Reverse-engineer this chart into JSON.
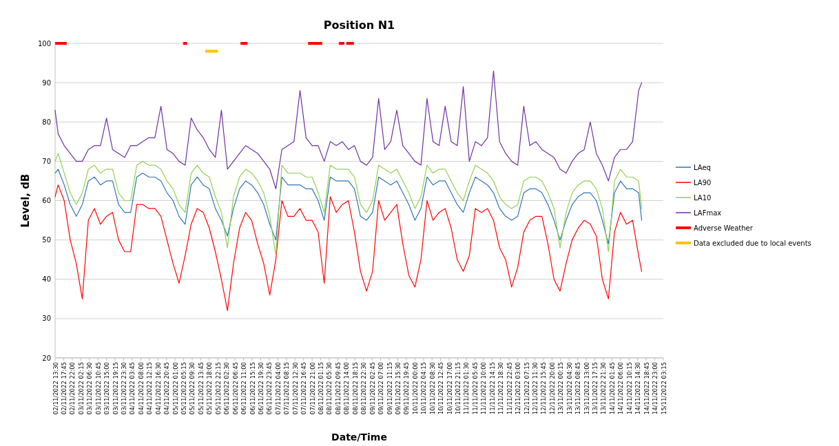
{
  "chart_data": {
    "type": "line",
    "title": "Position N1",
    "xlabel": "Date/Time",
    "ylabel": "Level, dB",
    "ylim": [
      20,
      100
    ],
    "yticks": [
      20,
      30,
      40,
      50,
      60,
      70,
      80,
      90,
      100
    ],
    "grid": "y",
    "legend": "right",
    "xlim": [
      "2022-11-02T13:30",
      "2022-11-15T03:15"
    ],
    "xticks": [
      {
        "value": "2022-11-02T13:30",
        "label": "02/11/2022 13:30"
      },
      {
        "value": "2022-11-02T17:45",
        "label": "02/11/2022 17:45"
      },
      {
        "value": "2022-11-02T22:00",
        "label": "02/11/2022 22:00"
      },
      {
        "value": "2022-11-03T02:15",
        "label": "03/11/2022 02:15"
      },
      {
        "value": "2022-11-03T06:30",
        "label": "03/11/2022 06:30"
      },
      {
        "value": "2022-11-03T10:45",
        "label": "03/11/2022 10:45"
      },
      {
        "value": "2022-11-03T15:00",
        "label": "03/11/2022 15:00"
      },
      {
        "value": "2022-11-03T19:15",
        "label": "03/11/2022 19:15"
      },
      {
        "value": "2022-11-03T23:30",
        "label": "03/11/2022 23:30"
      },
      {
        "value": "2022-11-04T03:45",
        "label": "04/11/2022 03:45"
      },
      {
        "value": "2022-11-04T08:00",
        "label": "04/11/2022 08:00"
      },
      {
        "value": "2022-11-04T12:15",
        "label": "04/11/2022 12:15"
      },
      {
        "value": "2022-11-04T16:30",
        "label": "04/11/2022 16:30"
      },
      {
        "value": "2022-11-04T20:45",
        "label": "04/11/2022 20:45"
      },
      {
        "value": "2022-11-05T01:00",
        "label": "05/11/2022 01:00"
      },
      {
        "value": "2022-11-05T05:15",
        "label": "05/11/2022 05:15"
      },
      {
        "value": "2022-11-05T09:30",
        "label": "05/11/2022 09:30"
      },
      {
        "value": "2022-11-05T13:45",
        "label": "05/11/2022 13:45"
      },
      {
        "value": "2022-11-05T18:00",
        "label": "05/11/2022 18:00"
      },
      {
        "value": "2022-11-05T22:15",
        "label": "05/11/2022 22:15"
      },
      {
        "value": "2022-11-06T02:30",
        "label": "06/11/2022 02:30"
      },
      {
        "value": "2022-11-06T06:45",
        "label": "06/11/2022 06:45"
      },
      {
        "value": "2022-11-06T11:00",
        "label": "06/11/2022 11:00"
      },
      {
        "value": "2022-11-06T15:15",
        "label": "06/11/2022 15:15"
      },
      {
        "value": "2022-11-06T19:30",
        "label": "06/11/2022 19:30"
      },
      {
        "value": "2022-11-06T23:45",
        "label": "06/11/2022 23:45"
      },
      {
        "value": "2022-11-07T04:00",
        "label": "07/11/2022 04:00"
      },
      {
        "value": "2022-11-07T08:15",
        "label": "07/11/2022 08:15"
      },
      {
        "value": "2022-11-07T12:30",
        "label": "07/11/2022 12:30"
      },
      {
        "value": "2022-11-07T16:45",
        "label": "07/11/2022 16:45"
      },
      {
        "value": "2022-11-07T21:00",
        "label": "07/11/2022 21:00"
      },
      {
        "value": "2022-11-08T01:15",
        "label": "08/11/2022 01:15"
      },
      {
        "value": "2022-11-08T05:30",
        "label": "08/11/2022 05:30"
      },
      {
        "value": "2022-11-08T09:45",
        "label": "08/11/2022 09:45"
      },
      {
        "value": "2022-11-08T14:00",
        "label": "08/11/2022 14:00"
      },
      {
        "value": "2022-11-08T18:15",
        "label": "08/11/2022 18:15"
      },
      {
        "value": "2022-11-08T22:30",
        "label": "08/11/2022 22:30"
      },
      {
        "value": "2022-11-09T02:45",
        "label": "09/11/2022 02:45"
      },
      {
        "value": "2022-11-09T07:00",
        "label": "09/11/2022 07:00"
      },
      {
        "value": "2022-11-09T11:15",
        "label": "09/11/2022 11:15"
      },
      {
        "value": "2022-11-09T15:30",
        "label": "09/11/2022 15:30"
      },
      {
        "value": "2022-11-09T19:45",
        "label": "09/11/2022 19:45"
      },
      {
        "value": "2022-11-10T00:00",
        "label": "10/11/2022 00:00"
      },
      {
        "value": "2022-11-10T04:15",
        "label": "10/11/2022 04:15"
      },
      {
        "value": "2022-11-10T08:30",
        "label": "10/11/2022 08:30"
      },
      {
        "value": "2022-11-10T12:45",
        "label": "10/11/2022 12:45"
      },
      {
        "value": "2022-11-10T17:00",
        "label": "10/11/2022 17:00"
      },
      {
        "value": "2022-11-10T21:15",
        "label": "10/11/2022 21:15"
      },
      {
        "value": "2022-11-11T01:30",
        "label": "11/11/2022 01:30"
      },
      {
        "value": "2022-11-11T05:45",
        "label": "11/11/2022 05:45"
      },
      {
        "value": "2022-11-11T10:00",
        "label": "11/11/2022 10:00"
      },
      {
        "value": "2022-11-11T14:15",
        "label": "11/11/2022 14:15"
      },
      {
        "value": "2022-11-11T18:30",
        "label": "11/11/2022 18:30"
      },
      {
        "value": "2022-11-11T22:45",
        "label": "11/11/2022 22:45"
      },
      {
        "value": "2022-11-12T03:00",
        "label": "12/11/2022 03:00"
      },
      {
        "value": "2022-11-12T07:15",
        "label": "12/11/2022 07:15"
      },
      {
        "value": "2022-11-12T11:30",
        "label": "12/11/2022 11:30"
      },
      {
        "value": "2022-11-12T15:45",
        "label": "12/11/2022 15:45"
      },
      {
        "value": "2022-11-12T20:00",
        "label": "12/11/2022 20:00"
      },
      {
        "value": "2022-11-13T00:15",
        "label": "13/11/2022 00:15"
      },
      {
        "value": "2022-11-13T04:30",
        "label": "13/11/2022 04:30"
      },
      {
        "value": "2022-11-13T08:45",
        "label": "13/11/2022 08:45"
      },
      {
        "value": "2022-11-13T13:00",
        "label": "13/11/2022 13:00"
      },
      {
        "value": "2022-11-13T17:15",
        "label": "13/11/2022 17:15"
      },
      {
        "value": "2022-11-13T21:30",
        "label": "13/11/2022 21:30"
      },
      {
        "value": "2022-11-14T01:45",
        "label": "14/11/2022 01:45"
      },
      {
        "value": "2022-11-14T06:00",
        "label": "14/11/2022 06:00"
      },
      {
        "value": "2022-11-14T10:15",
        "label": "14/11/2022 10:15"
      },
      {
        "value": "2022-11-14T14:30",
        "label": "14/11/2022 14:30"
      },
      {
        "value": "2022-11-14T18:45",
        "label": "14/11/2022 18:45"
      },
      {
        "value": "2022-11-14T23:00",
        "label": "14/11/2022 23:00"
      },
      {
        "value": "2022-11-15T03:15",
        "label": "15/11/2022 03:15"
      }
    ],
    "x": [
      "2022-11-02T13:30",
      "2022-11-02T15:00",
      "2022-11-02T18:00",
      "2022-11-02T21:00",
      "2022-11-03T00:00",
      "2022-11-03T03:00",
      "2022-11-03T06:00",
      "2022-11-03T09:00",
      "2022-11-03T12:00",
      "2022-11-03T15:00",
      "2022-11-03T18:00",
      "2022-11-03T21:00",
      "2022-11-04T00:00",
      "2022-11-04T03:00",
      "2022-11-04T06:00",
      "2022-11-04T09:00",
      "2022-11-04T12:00",
      "2022-11-04T15:00",
      "2022-11-04T18:00",
      "2022-11-04T21:00",
      "2022-11-05T00:00",
      "2022-11-05T03:00",
      "2022-11-05T06:00",
      "2022-11-05T09:00",
      "2022-11-05T12:00",
      "2022-11-05T15:00",
      "2022-11-05T18:00",
      "2022-11-05T21:00",
      "2022-11-06T00:00",
      "2022-11-06T03:00",
      "2022-11-06T06:00",
      "2022-11-06T09:00",
      "2022-11-06T12:00",
      "2022-11-06T15:00",
      "2022-11-06T18:00",
      "2022-11-06T21:00",
      "2022-11-07T00:00",
      "2022-11-07T03:00",
      "2022-11-07T06:00",
      "2022-11-07T09:00",
      "2022-11-07T12:00",
      "2022-11-07T15:00",
      "2022-11-07T18:00",
      "2022-11-07T21:00",
      "2022-11-08T00:00",
      "2022-11-08T03:00",
      "2022-11-08T06:00",
      "2022-11-08T09:00",
      "2022-11-08T12:00",
      "2022-11-08T15:00",
      "2022-11-08T18:00",
      "2022-11-08T21:00",
      "2022-11-09T00:00",
      "2022-11-09T03:00",
      "2022-11-09T06:00",
      "2022-11-09T09:00",
      "2022-11-09T12:00",
      "2022-11-09T15:00",
      "2022-11-09T18:00",
      "2022-11-09T21:00",
      "2022-11-10T00:00",
      "2022-11-10T03:00",
      "2022-11-10T06:00",
      "2022-11-10T09:00",
      "2022-11-10T12:00",
      "2022-11-10T15:00",
      "2022-11-10T18:00",
      "2022-11-10T21:00",
      "2022-11-11T00:00",
      "2022-11-11T03:00",
      "2022-11-11T06:00",
      "2022-11-11T09:00",
      "2022-11-11T12:00",
      "2022-11-11T15:00",
      "2022-11-11T18:00",
      "2022-11-11T21:00",
      "2022-11-12T00:00",
      "2022-11-12T03:00",
      "2022-11-12T06:00",
      "2022-11-12T09:00",
      "2022-11-12T12:00",
      "2022-11-12T15:00",
      "2022-11-12T18:00",
      "2022-11-12T21:00",
      "2022-11-13T00:00",
      "2022-11-13T03:00",
      "2022-11-13T06:00",
      "2022-11-13T09:00",
      "2022-11-13T12:00",
      "2022-11-13T15:00",
      "2022-11-13T18:00",
      "2022-11-13T21:00",
      "2022-11-14T00:00",
      "2022-11-14T03:00",
      "2022-11-14T06:00",
      "2022-11-14T09:00",
      "2022-11-14T12:00",
      "2022-11-14T15:00",
      "2022-11-14T16:30"
    ],
    "series": [
      {
        "name": "LAeq",
        "color": "#2e75b6",
        "values": [
          67,
          68,
          64,
          59,
          56,
          59,
          65,
          66,
          64,
          65,
          65,
          59,
          57,
          57,
          66,
          67,
          66,
          66,
          65,
          62,
          60,
          56,
          54,
          64,
          66,
          64,
          63,
          58,
          55,
          51,
          58,
          63,
          65,
          64,
          62,
          59,
          54,
          50,
          66,
          64,
          64,
          64,
          63,
          63,
          60,
          55,
          66,
          65,
          65,
          65,
          63,
          56,
          55,
          57,
          66,
          65,
          64,
          65,
          62,
          59,
          55,
          58,
          66,
          64,
          65,
          65,
          62,
          59,
          57,
          62,
          66,
          65,
          64,
          62,
          58,
          56,
          55,
          56,
          62,
          63,
          63,
          62,
          59,
          55,
          50,
          55,
          59,
          61,
          62,
          62,
          60,
          55,
          49,
          62,
          65,
          63,
          63,
          62,
          55
        ]
      },
      {
        "name": "LA90",
        "color": "#ff0000",
        "values": [
          61,
          64,
          60,
          50,
          44,
          35,
          55,
          58,
          54,
          56,
          57,
          50,
          47,
          47,
          59,
          59,
          58,
          58,
          56,
          50,
          44,
          39,
          46,
          54,
          58,
          57,
          53,
          47,
          40,
          32,
          44,
          53,
          57,
          55,
          49,
          44,
          36,
          45,
          60,
          56,
          56,
          58,
          55,
          55,
          52,
          39,
          61,
          57,
          59,
          60,
          52,
          42,
          37,
          42,
          60,
          55,
          57,
          59,
          49,
          41,
          38,
          45,
          60,
          55,
          57,
          58,
          53,
          45,
          42,
          46,
          58,
          57,
          58,
          55,
          48,
          45,
          38,
          43,
          52,
          55,
          56,
          56,
          49,
          40,
          37,
          44,
          50,
          53,
          55,
          54,
          51,
          40,
          35,
          52,
          57,
          54,
          55,
          46,
          42
        ]
      },
      {
        "name": "LA10",
        "color": "#92d050",
        "values": [
          70,
          72,
          67,
          62,
          59,
          62,
          68,
          69,
          67,
          68,
          68,
          62,
          60,
          60,
          69,
          70,
          69,
          69,
          68,
          65,
          63,
          59,
          57,
          67,
          69,
          67,
          66,
          61,
          57,
          48,
          61,
          66,
          68,
          67,
          65,
          62,
          56,
          46,
          69,
          67,
          67,
          67,
          66,
          66,
          62,
          57,
          69,
          68,
          68,
          68,
          66,
          59,
          57,
          60,
          69,
          68,
          67,
          68,
          65,
          62,
          58,
          61,
          69,
          67,
          68,
          68,
          65,
          62,
          60,
          65,
          69,
          68,
          67,
          65,
          61,
          59,
          58,
          59,
          65,
          66,
          66,
          65,
          62,
          58,
          48,
          57,
          62,
          64,
          65,
          65,
          63,
          58,
          47,
          65,
          68,
          66,
          66,
          65,
          58
        ]
      },
      {
        "name": "LAFmax",
        "color": "#7030a0",
        "values": [
          83,
          77,
          74,
          72,
          70,
          70,
          73,
          74,
          74,
          81,
          73,
          72,
          71,
          74,
          74,
          75,
          76,
          76,
          84,
          73,
          72,
          70,
          69,
          81,
          78,
          76,
          73,
          71,
          83,
          68,
          70,
          72,
          74,
          73,
          72,
          70,
          68,
          63,
          73,
          74,
          75,
          88,
          76,
          74,
          74,
          70,
          75,
          74,
          75,
          73,
          74,
          70,
          69,
          71,
          86,
          73,
          75,
          83,
          74,
          72,
          70,
          69,
          86,
          75,
          74,
          84,
          75,
          74,
          89,
          70,
          75,
          74,
          76,
          93,
          75,
          72,
          70,
          69,
          84,
          74,
          75,
          73,
          72,
          71,
          68,
          67,
          70,
          72,
          73,
          80,
          72,
          69,
          65,
          71,
          73,
          73,
          75,
          88,
          90
        ]
      },
      {
        "name": "Adverse Weather",
        "color": "#ff0000",
        "x": [
          "2022-11-02T13:30",
          "2022-11-02T19:15",
          "2022-11-03T12:00",
          "2022-11-05T05:00",
          "2022-11-05T07:00",
          "2022-11-05T12:00",
          "2022-11-06T09:30",
          "2022-11-06T13:00",
          "2022-11-07T00:00",
          "2022-11-07T19:00",
          "2022-11-08T02:00",
          "2022-11-08T06:00",
          "2022-11-08T10:15",
          "2022-11-08T13:00",
          "2022-11-08T13:30",
          "2022-11-08T14:00",
          "2022-11-08T17:45"
        ],
        "values": [
          100,
          100,
          null,
          100,
          100,
          null,
          100,
          100,
          null,
          100,
          100,
          null,
          100,
          100,
          null,
          100,
          100
        ]
      },
      {
        "name": "Data excluded due to local events",
        "color": "#ffc000",
        "x": [
          "2022-11-05T16:00",
          "2022-11-05T22:15"
        ],
        "values": [
          98,
          98
        ]
      }
    ]
  }
}
